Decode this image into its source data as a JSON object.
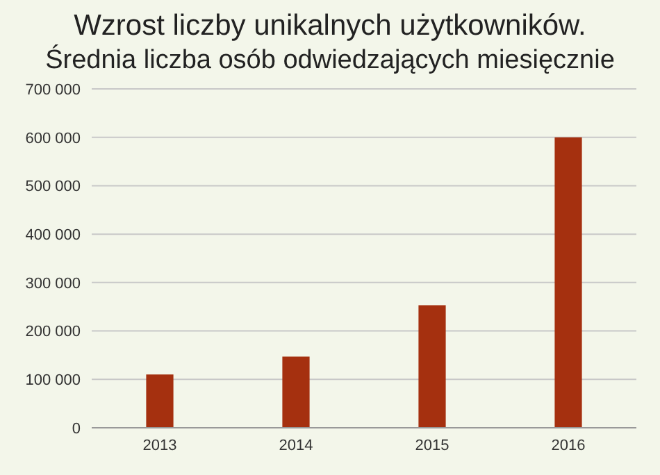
{
  "chart_data": {
    "type": "bar",
    "title": "Wzrost liczby unikalnych użytkowników.",
    "subtitle": "Średnia liczba osób odwiedzających miesięcznie",
    "categories": [
      "2013",
      "2014",
      "2015",
      "2016"
    ],
    "values": [
      110000,
      147000,
      253000,
      600000
    ],
    "color": "#a5300f",
    "ylim": [
      0,
      700000
    ],
    "yticks": [
      {
        "value": 0,
        "label": "0"
      },
      {
        "value": 100000,
        "label": "100 000"
      },
      {
        "value": 200000,
        "label": "200 000"
      },
      {
        "value": 300000,
        "label": "300 000"
      },
      {
        "value": 400000,
        "label": "400 000"
      },
      {
        "value": 500000,
        "label": "500 000"
      },
      {
        "value": 600000,
        "label": "600 000"
      },
      {
        "value": 700000,
        "label": "700 000"
      }
    ],
    "grid": "y",
    "legend": false
  }
}
